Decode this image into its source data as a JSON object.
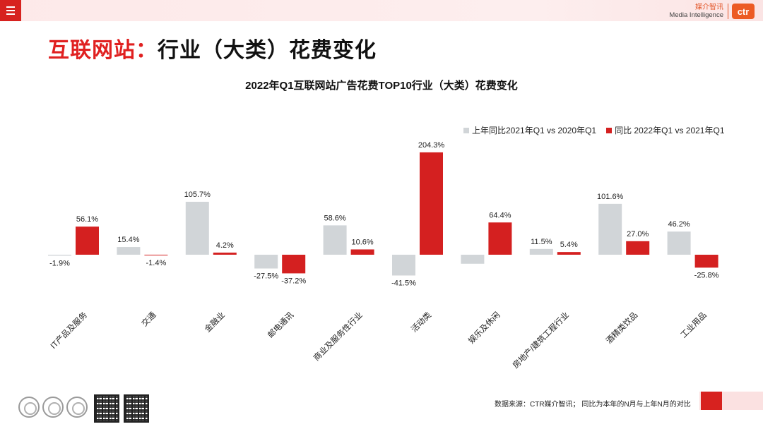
{
  "header": {
    "logo_cn": "媒介智讯",
    "logo_en": "Media Intelligence",
    "logo_badge": "ctr"
  },
  "page_title": {
    "red": "互联网站：",
    "black": "行业（大类）花费变化"
  },
  "chart_data": {
    "type": "bar",
    "title": "2022年Q1互联网站广告花费TOP10行业（大类）花费变化",
    "categories": [
      "IT产品及服务",
      "交通",
      "金融业",
      "邮电通讯",
      "商业及服务性行业",
      "活动类",
      "娱乐及休闲",
      "房地产/建筑工程行业",
      "酒精类饮品",
      "工业用品"
    ],
    "series": [
      {
        "name": "上年同比2021年Q1 vs 2020年Q1",
        "color": "#d1d5d8",
        "values": [
          -1.9,
          15.4,
          105.7,
          -27.5,
          58.6,
          -41.5,
          -18.0,
          11.5,
          101.6,
          46.2
        ],
        "labels": [
          "-1.9%",
          "15.4%",
          "105.7%",
          "-27.5%",
          "58.6%",
          "-41.5%",
          "",
          "11.5%",
          "101.6%",
          "46.2%"
        ]
      },
      {
        "name": "同比 2022年Q1 vs 2021年Q1",
        "color": "#d42020",
        "values": [
          56.1,
          -1.4,
          4.2,
          -37.2,
          10.6,
          204.3,
          64.4,
          5.4,
          27.0,
          -25.8
        ],
        "labels": [
          "56.1%",
          "-1.4%",
          "4.2%",
          "-37.2%",
          "10.6%",
          "204.3%",
          "64.4%",
          "5.4%",
          "27.0%",
          "-25.8%"
        ]
      }
    ],
    "legend_position": "top-right",
    "grid": false
  },
  "footer": {
    "source": "数据来源：CTR媒介智讯；  同比为本年的N月与上年N月的对比"
  }
}
